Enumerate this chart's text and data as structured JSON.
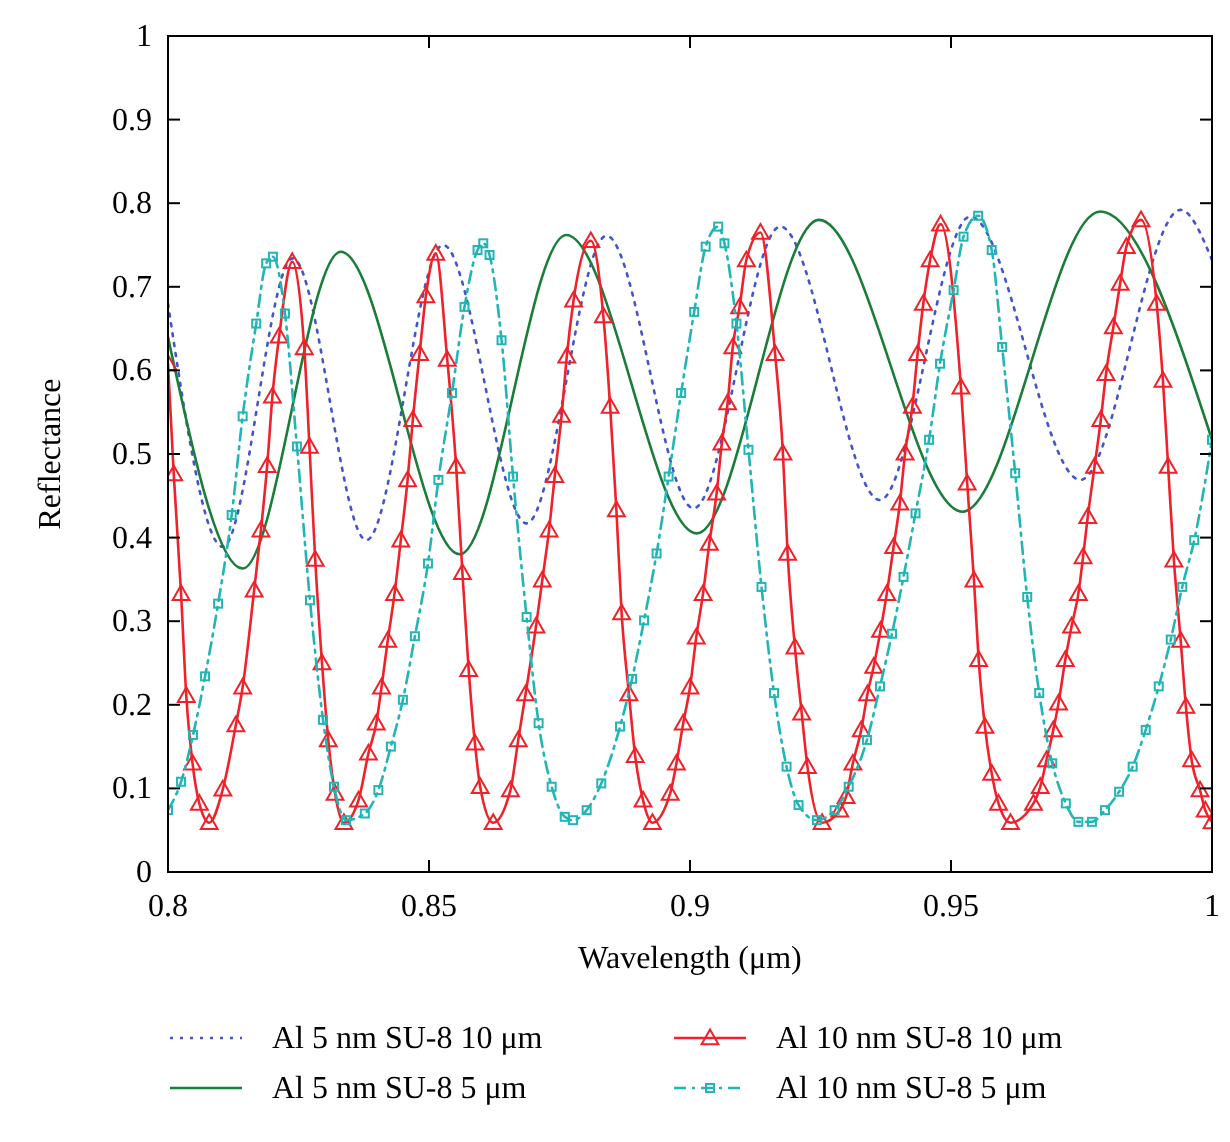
{
  "chart_data": {
    "type": "line",
    "xlabel": "Wavelength (μm)",
    "ylabel": "Reflectance",
    "xlim": [
      0.8,
      1.0
    ],
    "xticks": [
      0.8,
      0.85,
      0.9,
      0.95,
      {
        "value": 1.0,
        "label": "1"
      }
    ],
    "ylim": [
      0,
      1
    ],
    "yticks": [
      0,
      0.1,
      0.2,
      0.3,
      0.4,
      0.5,
      0.6,
      0.7,
      0.8,
      0.9,
      1
    ],
    "grid": false,
    "legend": "bottom",
    "series": [
      {
        "name": "Al 5 nm SU-8 10 μm",
        "color": "#4455cc",
        "line_style": "dotted",
        "marker": "none",
        "x": [
          0.8,
          0.8105,
          0.8239,
          0.838,
          0.8527,
          0.8687,
          0.884,
          0.9007,
          0.9173,
          0.9364,
          0.9537,
          0.9748,
          0.994,
          1.0
        ],
        "values": [
          0.68,
          0.389,
          0.734,
          0.397,
          0.75,
          0.417,
          0.761,
          0.435,
          0.772,
          0.445,
          0.784,
          0.469,
          0.792,
          0.732
        ]
      },
      {
        "name": "Al 5 nm SU-8 5 μm",
        "color": "#1b7d3a",
        "line_style": "solid",
        "marker": "none",
        "x": [
          0.8,
          0.8143,
          0.8331,
          0.8559,
          0.8763,
          0.9013,
          0.9247,
          0.9522,
          0.9786,
          1.0
        ],
        "values": [
          0.64,
          0.363,
          0.742,
          0.38,
          0.762,
          0.405,
          0.78,
          0.431,
          0.79,
          0.517
        ]
      },
      {
        "name": "Al 10 nm SU-8 10 μm",
        "color": "#ee2228",
        "line_style": "solid",
        "marker": "triangle",
        "x": [
          0.8,
          0.8011,
          0.8025,
          0.8035,
          0.8047,
          0.806,
          0.8079,
          0.8105,
          0.813,
          0.8143,
          0.8165,
          0.8178,
          0.819,
          0.82,
          0.8213,
          0.8238,
          0.8261,
          0.8271,
          0.8282,
          0.8295,
          0.8307,
          0.832,
          0.8337,
          0.8365,
          0.8384,
          0.8399,
          0.8409,
          0.8421,
          0.8434,
          0.8446,
          0.8459,
          0.8469,
          0.8482,
          0.8494,
          0.8513,
          0.8535,
          0.8552,
          0.8564,
          0.8576,
          0.8588,
          0.8598,
          0.8623,
          0.8656,
          0.8671,
          0.8685,
          0.8705,
          0.8717,
          0.873,
          0.8741,
          0.8754,
          0.8764,
          0.8777,
          0.881,
          0.8834,
          0.8847,
          0.8859,
          0.8869,
          0.8883,
          0.8895,
          0.891,
          0.8928,
          0.8962,
          0.8974,
          0.8987,
          0.9,
          0.9012,
          0.9025,
          0.9037,
          0.9051,
          0.9061,
          0.9072,
          0.9082,
          0.9095,
          0.9108,
          0.9135,
          0.9163,
          0.9178,
          0.9187,
          0.9201,
          0.9214,
          0.9225,
          0.9253,
          0.9287,
          0.9299,
          0.9312,
          0.9328,
          0.934,
          0.9352,
          0.9365,
          0.9377,
          0.939,
          0.9402,
          0.9412,
          0.9426,
          0.9436,
          0.9447,
          0.946,
          0.948,
          0.9519,
          0.9531,
          0.9544,
          0.9553,
          0.9565,
          0.9578,
          0.9591,
          0.9614,
          0.9658,
          0.9671,
          0.9683,
          0.9696,
          0.9706,
          0.9719,
          0.9731,
          0.9744,
          0.9753,
          0.9762,
          0.9775,
          0.9787,
          0.9797,
          0.9811,
          0.9824,
          0.9836,
          0.9864,
          0.9894,
          0.9906,
          0.9916,
          0.9927,
          0.994,
          0.995,
          0.9961,
          0.9977,
          0.9987,
          1.0
        ],
        "values": [
          0.608,
          0.476,
          0.333,
          0.211,
          0.13,
          0.082,
          0.059,
          0.099,
          0.176,
          0.221,
          0.337,
          0.409,
          0.486,
          0.569,
          0.641,
          0.73,
          0.627,
          0.509,
          0.374,
          0.25,
          0.158,
          0.094,
          0.059,
          0.086,
          0.142,
          0.178,
          0.221,
          0.277,
          0.333,
          0.397,
          0.469,
          0.541,
          0.62,
          0.689,
          0.74,
          0.613,
          0.485,
          0.358,
          0.242,
          0.154,
          0.102,
          0.059,
          0.098,
          0.158,
          0.213,
          0.294,
          0.349,
          0.409,
          0.474,
          0.546,
          0.617,
          0.684,
          0.755,
          0.665,
          0.557,
          0.433,
          0.31,
          0.213,
          0.139,
          0.086,
          0.059,
          0.094,
          0.13,
          0.178,
          0.221,
          0.281,
          0.333,
          0.393,
          0.453,
          0.513,
          0.561,
          0.628,
          0.676,
          0.732,
          0.765,
          0.62,
          0.501,
          0.381,
          0.269,
          0.19,
          0.126,
          0.059,
          0.074,
          0.09,
          0.13,
          0.17,
          0.213,
          0.246,
          0.289,
          0.333,
          0.389,
          0.441,
          0.501,
          0.557,
          0.62,
          0.68,
          0.732,
          0.775,
          0.58,
          0.465,
          0.349,
          0.254,
          0.174,
          0.118,
          0.082,
          0.059,
          0.082,
          0.102,
          0.134,
          0.17,
          0.202,
          0.254,
          0.294,
          0.333,
          0.377,
          0.425,
          0.485,
          0.541,
          0.596,
          0.652,
          0.704,
          0.748,
          0.78,
          0.68,
          0.588,
          0.485,
          0.373,
          0.277,
          0.198,
          0.134,
          0.098,
          0.074,
          0.06
        ]
      },
      {
        "name": "Al 10 nm SU-8 5 μm",
        "color": "#22b5b5",
        "line_style": "dashed",
        "marker": "square",
        "x": [
          0.8,
          0.8025,
          0.8048,
          0.8071,
          0.8096,
          0.8122,
          0.8143,
          0.8169,
          0.8188,
          0.8201,
          0.8224,
          0.8247,
          0.8272,
          0.8297,
          0.8318,
          0.8341,
          0.8377,
          0.8403,
          0.8427,
          0.845,
          0.8473,
          0.8498,
          0.8518,
          0.8544,
          0.8568,
          0.8593,
          0.8604,
          0.8616,
          0.8639,
          0.8661,
          0.8687,
          0.871,
          0.8735,
          0.876,
          0.8776,
          0.8802,
          0.883,
          0.8866,
          0.8889,
          0.8912,
          0.8936,
          0.8959,
          0.8983,
          0.9008,
          0.903,
          0.9054,
          0.9066,
          0.9089,
          0.9112,
          0.9137,
          0.9161,
          0.9185,
          0.9208,
          0.9243,
          0.9277,
          0.9304,
          0.9339,
          0.9364,
          0.9387,
          0.9409,
          0.9432,
          0.9458,
          0.9479,
          0.9505,
          0.9524,
          0.9552,
          0.9578,
          0.9598,
          0.9623,
          0.9646,
          0.9669,
          0.9694,
          0.972,
          0.9744,
          0.977,
          0.9795,
          0.9822,
          0.9848,
          0.9873,
          0.9898,
          0.9921,
          0.9943,
          0.9966,
          1.0
        ],
        "values": [
          0.074,
          0.108,
          0.164,
          0.234,
          0.321,
          0.427,
          0.545,
          0.656,
          0.728,
          0.736,
          0.668,
          0.509,
          0.325,
          0.182,
          0.102,
          0.062,
          0.07,
          0.098,
          0.15,
          0.206,
          0.282,
          0.369,
          0.469,
          0.573,
          0.676,
          0.744,
          0.752,
          0.738,
          0.636,
          0.473,
          0.305,
          0.178,
          0.102,
          0.066,
          0.062,
          0.074,
          0.106,
          0.174,
          0.231,
          0.301,
          0.381,
          0.473,
          0.573,
          0.67,
          0.748,
          0.772,
          0.752,
          0.656,
          0.505,
          0.341,
          0.214,
          0.126,
          0.08,
          0.062,
          0.074,
          0.102,
          0.158,
          0.222,
          0.285,
          0.353,
          0.429,
          0.517,
          0.608,
          0.696,
          0.76,
          0.785,
          0.744,
          0.628,
          0.477,
          0.329,
          0.214,
          0.13,
          0.082,
          0.06,
          0.06,
          0.074,
          0.096,
          0.126,
          0.17,
          0.222,
          0.278,
          0.341,
          0.397,
          0.517
        ]
      }
    ]
  }
}
